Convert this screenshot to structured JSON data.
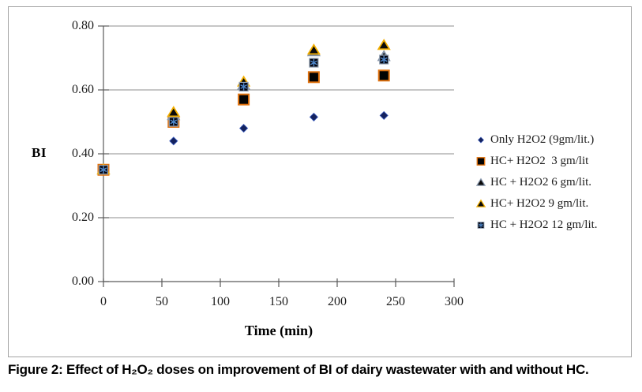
{
  "caption": "Figure 2: Effect of H₂O₂ doses on improvement of BI of dairy wastewater with and without HC.",
  "chart_data": {
    "type": "scatter",
    "title": "",
    "xlabel": "Time (min)",
    "ylabel": "BI",
    "xlim": [
      0,
      300
    ],
    "ylim": [
      0.0,
      0.8
    ],
    "x_ticks": [
      "0",
      "50",
      "100",
      "150",
      "200",
      "250",
      "300"
    ],
    "y_ticks": [
      "0.00",
      "0.20",
      "0.40",
      "0.60",
      "0.80"
    ],
    "grid": "horizontal-gridlines-on",
    "legend_position": "right-outside",
    "x": [
      0,
      60,
      120,
      180,
      240
    ],
    "series": [
      {
        "name": "Only H2O2 (9gm/lit.)",
        "marker": "diamond",
        "fill": "#14225e",
        "edge": "#3a5cc0",
        "values": [
          0.35,
          0.44,
          0.48,
          0.515,
          0.52
        ]
      },
      {
        "name": "HC+ H2O2  3 gm/lit",
        "marker": "square",
        "fill": "#030303",
        "edge": "#e0720f",
        "values": [
          0.35,
          0.5,
          0.57,
          0.64,
          0.645
        ]
      },
      {
        "name": "HC + H2O2 6 gm/lit.",
        "marker": "triangle",
        "fill": "#0a0a0a",
        "edge": "#8695aa",
        "values": [
          0.35,
          0.52,
          0.615,
          0.72,
          0.705
        ]
      },
      {
        "name": "HC+ H2O2 9 gm/lit.",
        "marker": "triangle",
        "fill": "#0a0a0a",
        "edge": "#f2ae00",
        "values": [
          0.35,
          0.53,
          0.625,
          0.725,
          0.74
        ]
      },
      {
        "name": "HC + H2O2 12 gm/lit.",
        "marker": "asterisk-square",
        "fill": "#05050f",
        "edge": "#93a2b4",
        "asterisk_color": "#4e86c8",
        "values": [
          0.35,
          0.5,
          0.61,
          0.685,
          0.695
        ]
      }
    ],
    "colors": {
      "gridline": "#8c8c8c",
      "axis": "#5a5a5a",
      "tick_text": "#1c1c1c"
    }
  }
}
